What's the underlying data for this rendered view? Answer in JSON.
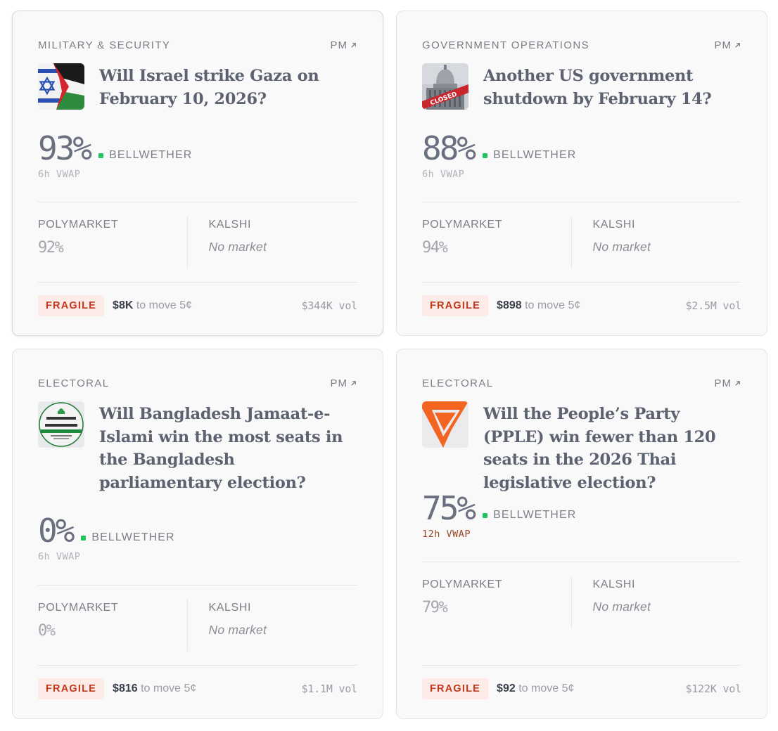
{
  "cards": [
    {
      "category": "MILITARY & SECURITY",
      "source_link": "PM",
      "title": "Will Israel strike Gaza on February 10, 2026?",
      "thumbnail_icon": "israel-palestine-flags-image",
      "probability": "93%",
      "bellwether_label": "BELLWETHER",
      "vwap": "6h VWAP",
      "markets": [
        {
          "name": "POLYMARKET",
          "value": "92%"
        },
        {
          "name": "KALSHI",
          "value": "No market"
        }
      ],
      "fragility": "FRAGILE",
      "liquidity_amount": "$8K",
      "liquidity_text": "to move 5¢",
      "volume": "$344K vol"
    },
    {
      "category": "GOVERNMENT OPERATIONS",
      "source_link": "PM",
      "title": "Another US government shutdown by February 14?",
      "thumbnail_icon": "capitol-closed-image",
      "thumbnail_text": "CLOSED",
      "probability": "88%",
      "bellwether_label": "BELLWETHER",
      "vwap": "6h VWAP",
      "markets": [
        {
          "name": "POLYMARKET",
          "value": "94%"
        },
        {
          "name": "KALSHI",
          "value": "No market"
        }
      ],
      "fragility": "FRAGILE",
      "liquidity_amount": "$898",
      "liquidity_text": "to move 5¢",
      "volume": "$2.5M vol"
    },
    {
      "category": "ELECTORAL",
      "source_link": "PM",
      "title": "Will Bangladesh Jamaat-e-Islami win the most seats in the Bangladesh parliamentary election?",
      "thumbnail_icon": "jamaat-logo-image",
      "probability": "0%",
      "bellwether_label": "BELLWETHER",
      "vwap": "6h VWAP",
      "markets": [
        {
          "name": "POLYMARKET",
          "value": "0%"
        },
        {
          "name": "KALSHI",
          "value": "No market"
        }
      ],
      "fragility": "FRAGILE",
      "liquidity_amount": "$816",
      "liquidity_text": "to move 5¢",
      "volume": "$1.1M vol"
    },
    {
      "category": "ELECTORAL",
      "source_link": "PM",
      "title": "Will the People’s Party (PPLE) win fewer than 120 seats in the 2026 Thai legislative election?",
      "thumbnail_icon": "peoples-party-logo-image",
      "probability": "75%",
      "bellwether_label": "BELLWETHER",
      "vwap": "12h VWAP",
      "markets": [
        {
          "name": "POLYMARKET",
          "value": "79%"
        },
        {
          "name": "KALSHI",
          "value": "No market"
        }
      ],
      "fragility": "FRAGILE",
      "liquidity_amount": "$92",
      "liquidity_text": "to move 5¢",
      "volume": "$122K vol"
    }
  ],
  "colors": {
    "card_bg": "#f9f9fa",
    "bellwether_dot": "#22c55e",
    "fragile_text": "#c2391b",
    "fragile_bg": "#fcebe7",
    "vwap_warning": "#9a4a27"
  }
}
